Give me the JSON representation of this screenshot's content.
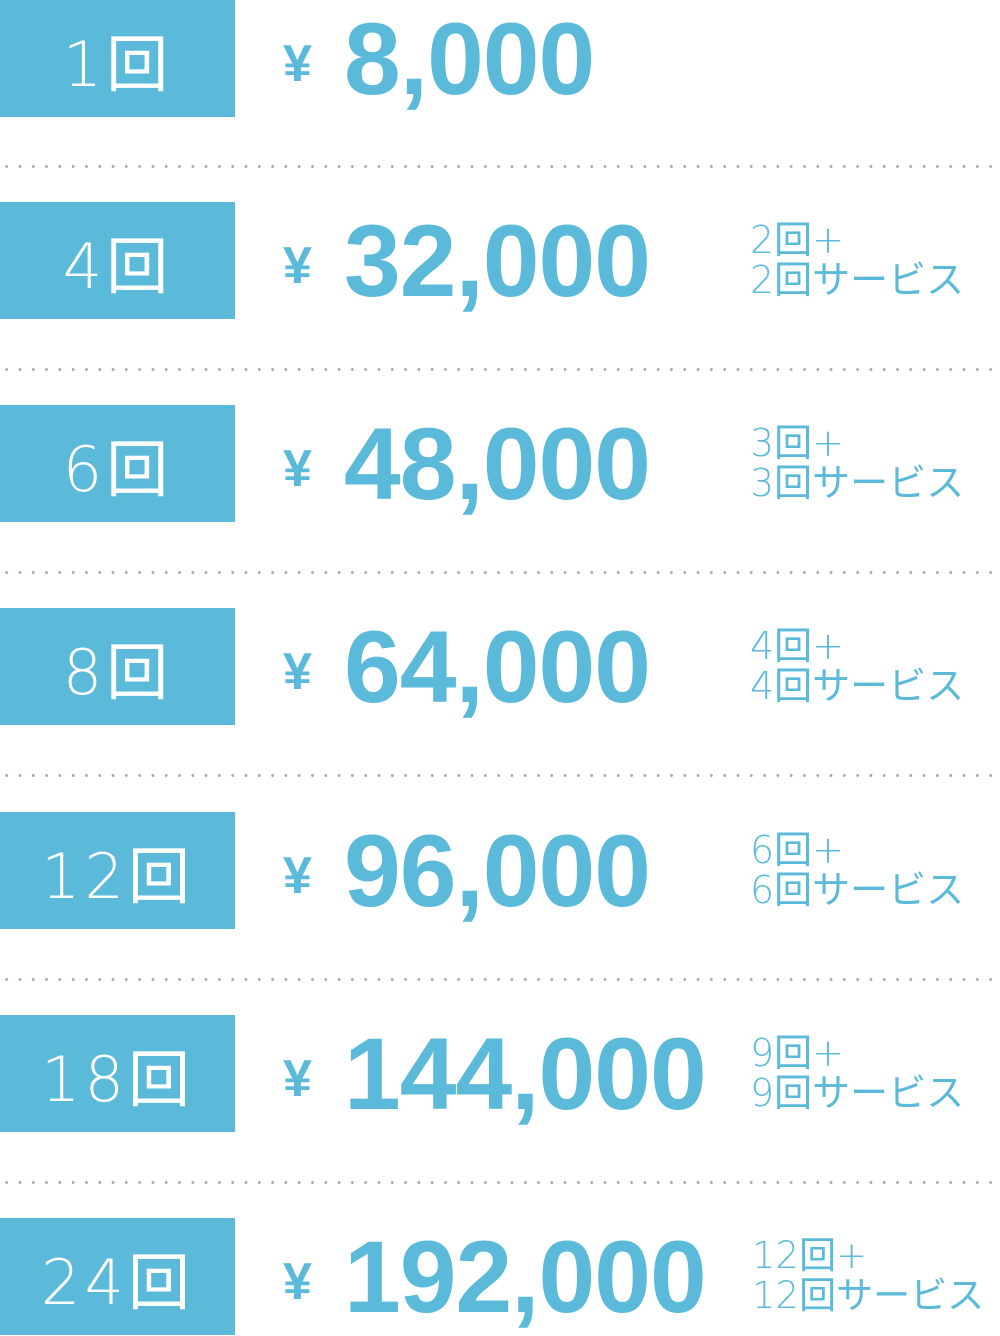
{
  "accent_color": "#5bbad9",
  "currency_symbol": "¥",
  "plans": [
    {
      "sessions": "1回",
      "price": "8,000",
      "note_line1": "",
      "note_line2": ""
    },
    {
      "sessions": "4回",
      "price": "32,000",
      "note_line1": "2回+",
      "note_line2": "2回サービス"
    },
    {
      "sessions": "6回",
      "price": "48,000",
      "note_line1": "3回+",
      "note_line2": "3回サービス"
    },
    {
      "sessions": "8回",
      "price": "64,000",
      "note_line1": "4回+",
      "note_line2": "4回サービス"
    },
    {
      "sessions": "12回",
      "price": "96,000",
      "note_line1": "6回+",
      "note_line2": "6回サービス"
    },
    {
      "sessions": "18回",
      "price": "144,000",
      "note_line1": "9回+",
      "note_line2": "9回サービス"
    },
    {
      "sessions": "24回",
      "price": "192,000",
      "note_line1": "12回+",
      "note_line2": "12回サービス"
    }
  ]
}
